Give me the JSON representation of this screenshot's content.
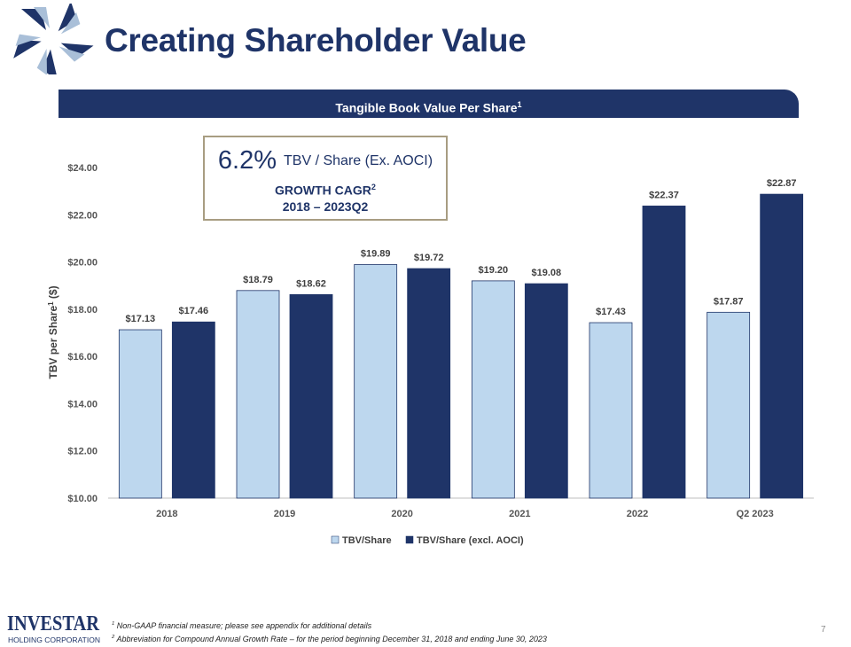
{
  "header": {
    "title": "Creating Shareholder Value"
  },
  "banner": {
    "text": "Tangible Book Value Per Share",
    "sup": "1"
  },
  "callout": {
    "percent": "6.2%",
    "metric": "TBV / Share (Ex. AOCI)",
    "line2": "GROWTH CAGR",
    "line2_sup": "2",
    "line3": "2018 – 2023Q2"
  },
  "chart_data": {
    "type": "bar",
    "categories": [
      "2018",
      "2019",
      "2020",
      "2021",
      "2022",
      "Q2 2023"
    ],
    "series": [
      {
        "name": "TBV/Share",
        "color": "#bdd7ee",
        "values": [
          17.13,
          18.79,
          19.89,
          19.2,
          17.43,
          17.87
        ],
        "labels": [
          "$17.13",
          "$18.79",
          "$19.89",
          "$19.20",
          "$17.43",
          "$17.87"
        ]
      },
      {
        "name": "TBV/Share (excl. AOCI)",
        "color": "#1f3468",
        "values": [
          17.46,
          18.62,
          19.72,
          19.08,
          22.37,
          22.87
        ],
        "labels": [
          "$17.46",
          "$18.62",
          "$19.72",
          "$19.08",
          "$22.37",
          "$22.87"
        ]
      }
    ],
    "ylabel": "TBV per Share",
    "ylabel_sup": "1",
    "ylabel_suffix": " ($)",
    "ylim": [
      10,
      24
    ],
    "yticks": [
      10,
      12,
      14,
      16,
      18,
      20,
      22,
      24
    ],
    "ytick_labels": [
      "$10.00",
      "$12.00",
      "$14.00",
      "$16.00",
      "$18.00",
      "$20.00",
      "$22.00",
      "$24.00"
    ],
    "legend_position": "bottom",
    "grid": false
  },
  "footer": {
    "logo_text": "INVESTAR",
    "logo_subtext": "HOLDING CORPORATION",
    "footnote1": "Non-GAAP financial measure; please see appendix for additional details",
    "footnote1_num": "1",
    "footnote2": "Abbreviation for Compound Annual Growth Rate – for the period beginning December 31, 2018 and ending June 30, 2023",
    "footnote2_num": "2",
    "page_number": "7"
  },
  "colors": {
    "navy": "#1f3468",
    "light_blue": "#bdd7ee",
    "callout_border": "#a89d82"
  }
}
